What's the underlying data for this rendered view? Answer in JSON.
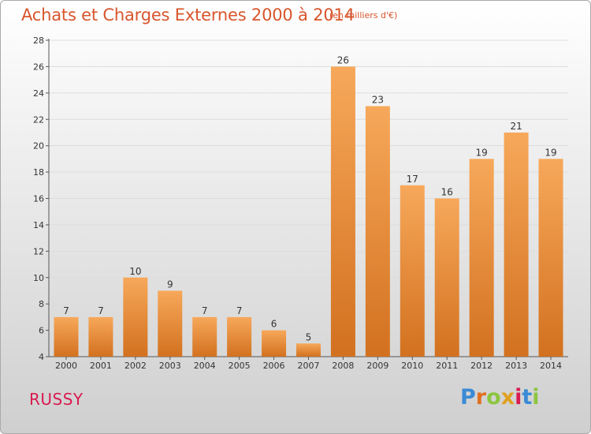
{
  "header": {
    "title": "Achats et Charges Externes 2000 à 2014",
    "subtitle": "(en milliers d'€)"
  },
  "footer": {
    "town": "RUSSY",
    "logo_text": "Proxiti",
    "logo_colors": [
      "#3a8ad6",
      "#e07020",
      "#8cc63f",
      "#e0a020",
      "#d81b50",
      "#3a8ad6",
      "#8cc63f"
    ]
  },
  "colors": {
    "bar_top": "#f7a85a",
    "bar_bottom": "#d2711f",
    "axis": "#555555",
    "grid": "#dddddd"
  },
  "chart_data": {
    "type": "bar",
    "title": "Achats et Charges Externes 2000 à 2014",
    "subtitle": "(en milliers d'€)",
    "xlabel": "",
    "ylabel": "",
    "categories": [
      "2000",
      "2001",
      "2002",
      "2003",
      "2004",
      "2005",
      "2006",
      "2007",
      "2008",
      "2009",
      "2010",
      "2011",
      "2012",
      "2013",
      "2014"
    ],
    "values": [
      7,
      7,
      10,
      9,
      7,
      7,
      6,
      5,
      26,
      23,
      17,
      16,
      19,
      21,
      19
    ],
    "ylim": [
      4,
      28
    ],
    "yticks": [
      4,
      6,
      8,
      10,
      12,
      14,
      16,
      18,
      20,
      22,
      24,
      26,
      28
    ],
    "grid": true,
    "data_labels": true
  }
}
